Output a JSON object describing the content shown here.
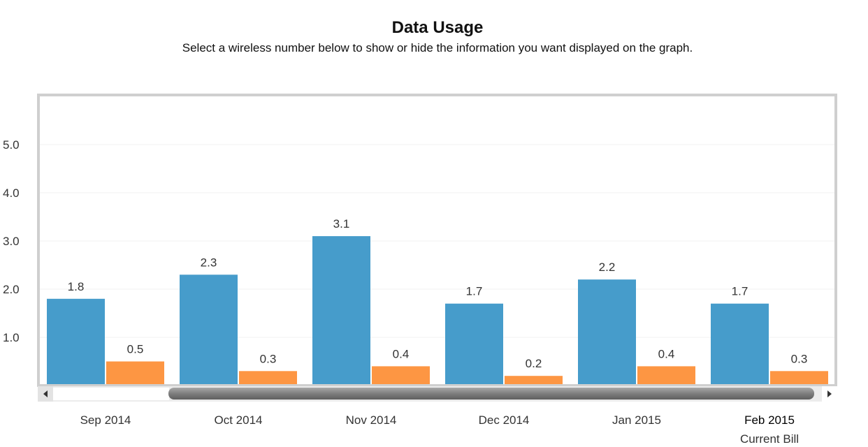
{
  "header": {
    "title": "Data Usage",
    "subtitle": "Select a wireless number below to show or hide the information you want displayed on the graph."
  },
  "chart_data": {
    "type": "bar",
    "title": "Data Usage",
    "categories": [
      "Sep 2014",
      "Oct 2014",
      "Nov 2014",
      "Dec 2014",
      "Jan 2015",
      "Feb 2015"
    ],
    "category_sublabels": [
      "",
      "",
      "",
      "",
      "",
      "Current Bill"
    ],
    "highlight_category": "Feb 2015",
    "yticks": [
      "1.0",
      "2.0",
      "3.0",
      "4.0",
      "5.0"
    ],
    "ylim": [
      0,
      6
    ],
    "grid": true,
    "series": [
      {
        "values": [
          1.8,
          2.3,
          3.1,
          1.7,
          2.2,
          1.7
        ],
        "color": "#469ccb"
      },
      {
        "values": [
          0.5,
          0.3,
          0.4,
          0.2,
          0.4,
          0.3
        ],
        "color": "#fd9643"
      }
    ],
    "scrollbar": true
  }
}
